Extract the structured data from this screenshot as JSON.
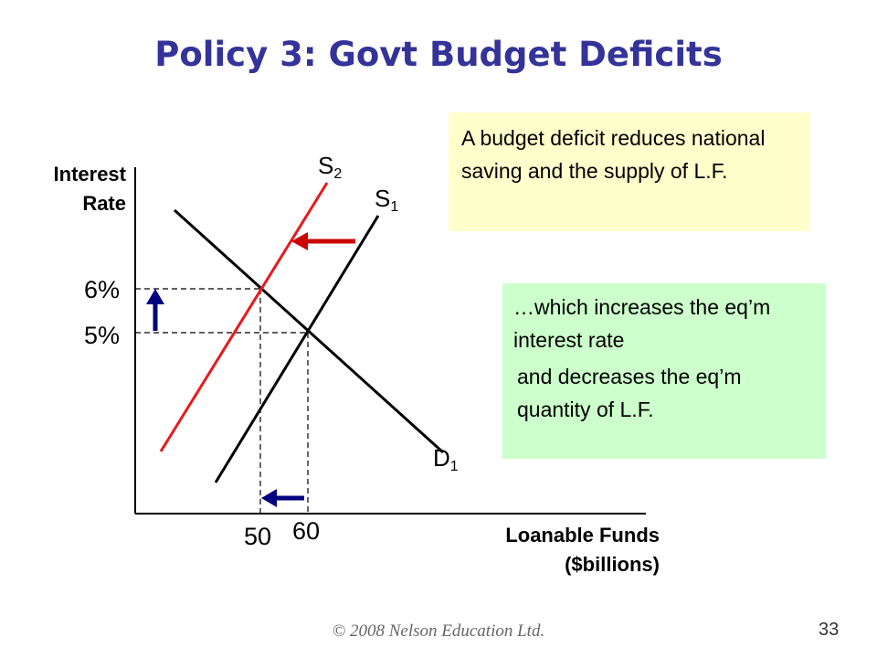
{
  "title": "Policy 3:  Govt Budget Deficits",
  "axes": {
    "y_label_line1": "Interest",
    "y_label_line2": "Rate",
    "x_label_line1": "Loanable Funds",
    "x_label_line2": "($billions)"
  },
  "ticks": {
    "y_high": "6%",
    "y_low": "5%",
    "x_left": "50",
    "x_right": "60"
  },
  "curves": {
    "s2": {
      "letter": "S",
      "sub": "2",
      "color": "#e8191e"
    },
    "s1": {
      "letter": "S",
      "sub": "1",
      "color": "#000000"
    },
    "d1": {
      "letter": "D",
      "sub": "1",
      "color": "#000000"
    }
  },
  "arrow_color": "#000080",
  "shift_arrow_color": "#cc0000",
  "notes": {
    "yellow": "A budget deficit reduces national saving and the supply of L.F.",
    "green_line1": "…which increases the eq’m interest rate",
    "green_line2": "and decreases the eq’m quantity of L.F."
  },
  "footer": "© 2008 Nelson Education Ltd.",
  "page_number": "33"
}
